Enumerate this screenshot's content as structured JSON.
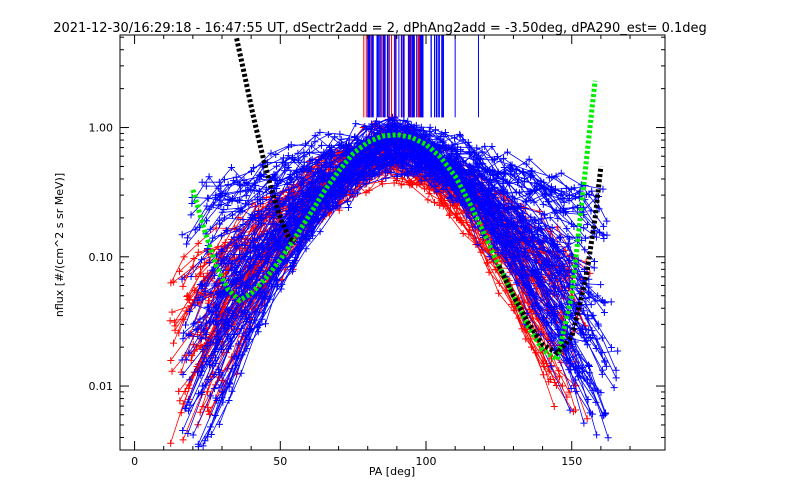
{
  "chart_data": {
    "type": "scatter",
    "title": "2021-12-30/16:29:18 - 16:47:55 UT, dSectr2add = 2, dPhAng2add = -3.50deg, dPA290_est=   0.1deg",
    "xlabel": "PA [deg]",
    "ylabel": "nflux [#/(cm^2 s sr MeV)]",
    "xlim": [
      -5,
      182
    ],
    "ylim": [
      0.0032,
      5.2
    ],
    "yscale": "log",
    "x_ticks": [
      0,
      50,
      100,
      150
    ],
    "x_tick_labels": [
      "0",
      "50",
      "100",
      "150"
    ],
    "y_ticks": [
      0.01,
      0.1,
      1.0
    ],
    "y_tick_labels": [
      "0.01",
      "0.10",
      "1.00"
    ],
    "grid": false,
    "colors": {
      "red_traces": "#ff0000",
      "blue_traces": "#0000ff",
      "green_fit": "#00ee00",
      "black_fit": "#000000"
    },
    "series": [
      {
        "color": "#00ee00",
        "style": "thick-dots",
        "x": [
          20,
          24,
          28,
          32,
          36,
          40,
          45,
          50,
          55,
          60,
          65,
          70,
          75,
          80,
          85,
          90,
          95,
          100,
          105,
          110,
          115,
          120,
          125,
          130,
          135,
          140,
          145,
          150,
          155,
          158
        ],
        "y": [
          0.33,
          0.16,
          0.085,
          0.056,
          0.046,
          0.052,
          0.068,
          0.095,
          0.14,
          0.21,
          0.32,
          0.46,
          0.63,
          0.77,
          0.86,
          0.88,
          0.84,
          0.74,
          0.59,
          0.42,
          0.26,
          0.15,
          0.085,
          0.05,
          0.029,
          0.019,
          0.016,
          0.05,
          0.55,
          2.3
        ]
      },
      {
        "color": "#000000",
        "style": "thick-dots",
        "x": [
          35,
          38,
          41,
          44,
          47,
          50,
          53,
          55
        ],
        "y": [
          4.9,
          2.4,
          1.15,
          0.6,
          0.33,
          0.2,
          0.14,
          0.13
        ]
      },
      {
        "color": "#000000",
        "style": "thick-dots",
        "x": [
          125,
          130,
          135,
          140,
          145,
          150,
          155,
          158,
          160
        ],
        "y": [
          0.085,
          0.05,
          0.031,
          0.021,
          0.018,
          0.024,
          0.07,
          0.2,
          0.5
        ]
      }
    ],
    "red_traces": {
      "count": 60,
      "pa_range": [
        12,
        158
      ],
      "peak_pa": 88,
      "peak_flux_range": [
        0.45,
        0.98
      ],
      "low_flux_range": [
        0.0045,
        0.08
      ]
    },
    "blue_traces": {
      "count": 90,
      "pa_range": [
        16,
        168
      ],
      "peak_pa": 90,
      "peak_flux_range": [
        0.5,
        0.99
      ],
      "low_flux_range": [
        0.0035,
        0.32
      ]
    },
    "vertical_markers": {
      "red_count": 25,
      "blue_count": 60,
      "pa_range": [
        78,
        106
      ],
      "outliers_pa": [
        110,
        118
      ],
      "y_from": 1.2,
      "y_to": 5.2
    }
  }
}
